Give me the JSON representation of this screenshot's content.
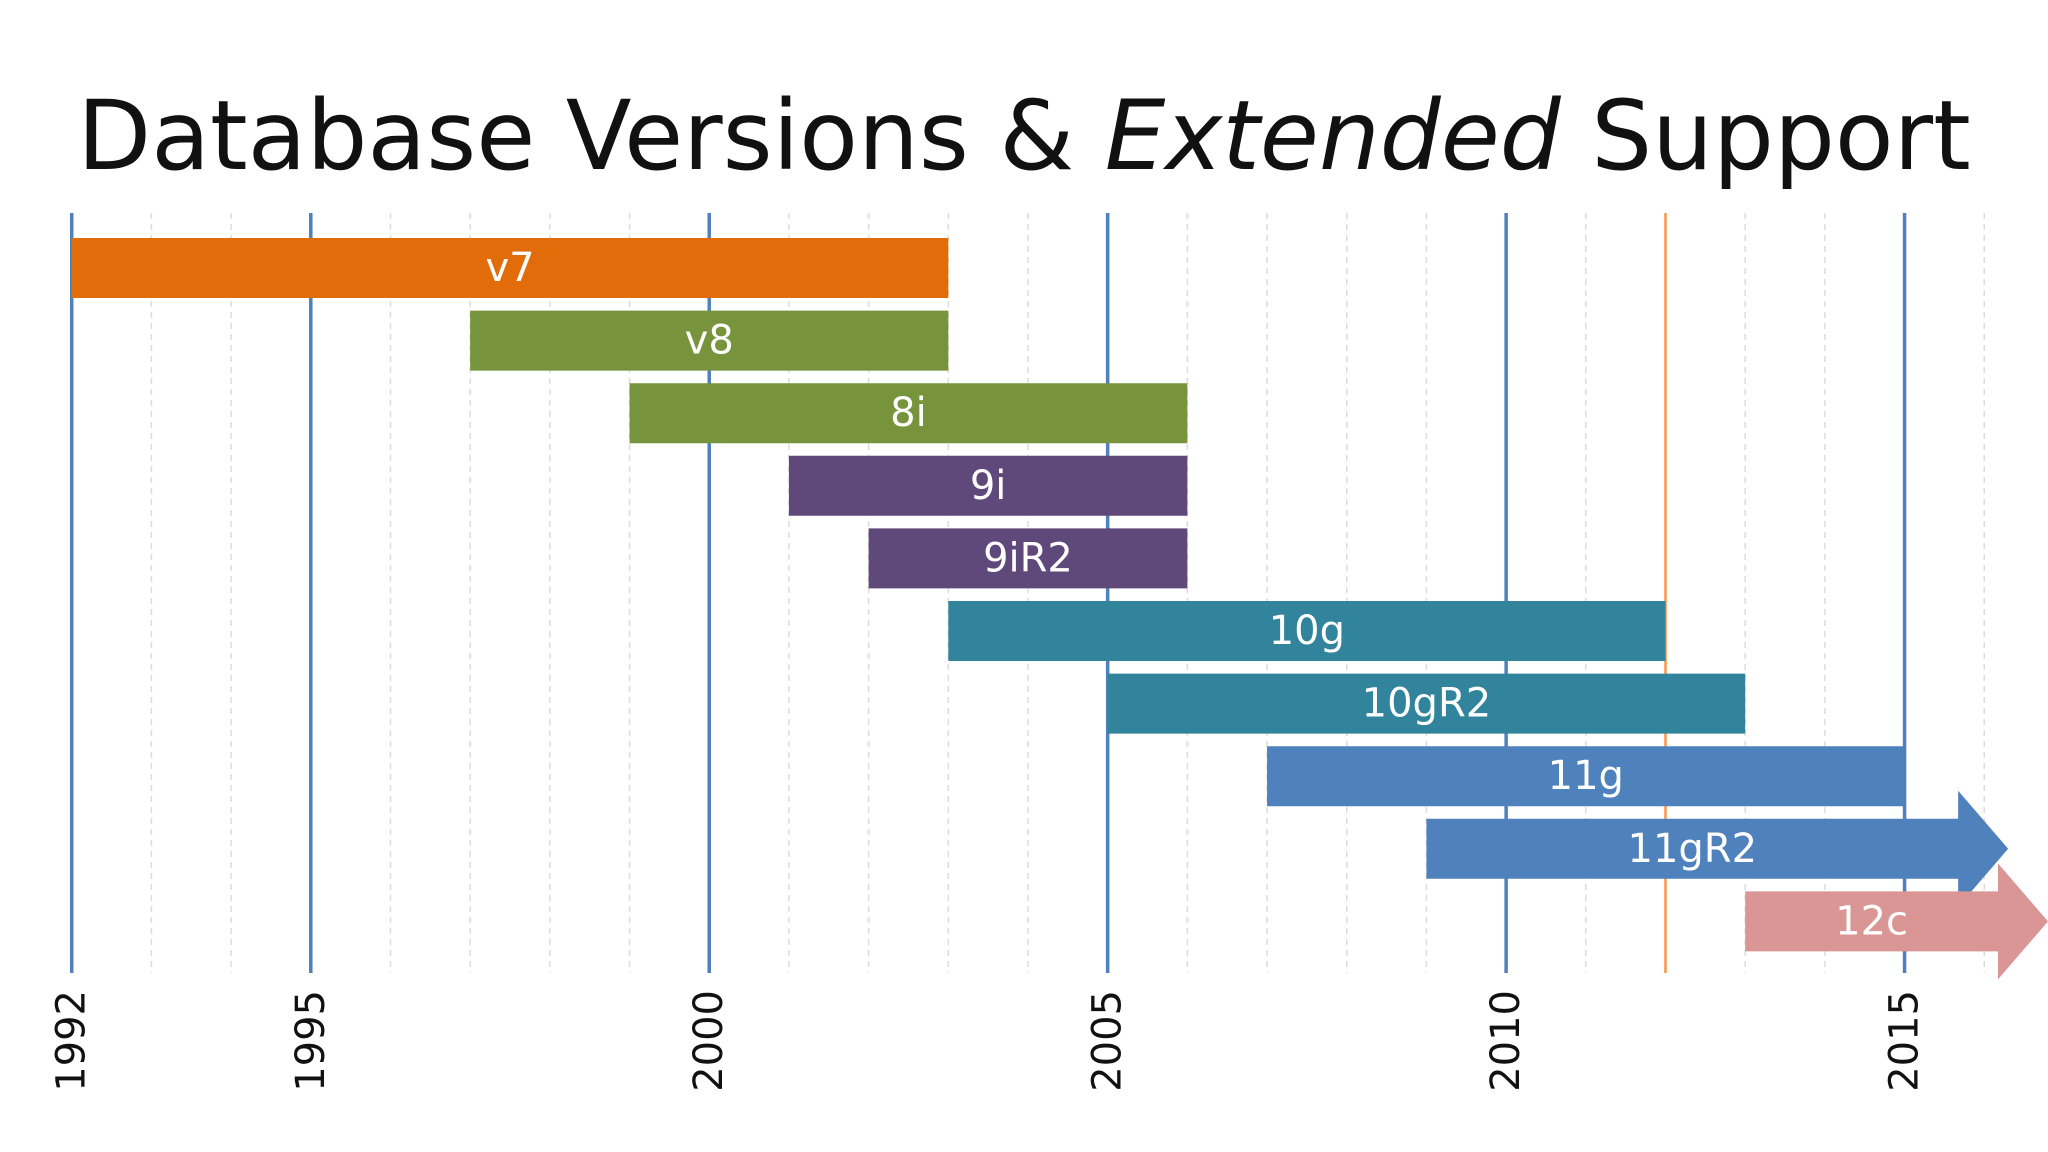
{
  "chart_data": {
    "type": "timeline",
    "title": [
      {
        "text": "Database Versions &",
        "italic": false
      },
      {
        "text": "Extended",
        "italic": true
      },
      {
        "text": "Support",
        "italic": false
      }
    ],
    "bars": [
      {
        "name": "v7",
        "start": 1992,
        "end": 2003,
        "color": "#e36c0a",
        "arrow": false
      },
      {
        "name": "v8",
        "start": 1997,
        "end": 2003,
        "color": "#77933c",
        "arrow": false
      },
      {
        "name": "8i",
        "start": 1999,
        "end": 2006,
        "color": "#77933c",
        "arrow": false
      },
      {
        "name": "9i",
        "start": 2001,
        "end": 2006,
        "color": "#5f497a",
        "arrow": false
      },
      {
        "name": "9iR2",
        "start": 2002,
        "end": 2006,
        "color": "#5f497a",
        "arrow": false
      },
      {
        "name": "10g",
        "start": 2003,
        "end": 2012,
        "color": "#31849b",
        "arrow": false
      },
      {
        "name": "10gR2",
        "start": 2005,
        "end": 2013,
        "color": "#31849b",
        "arrow": false
      },
      {
        "name": "11g",
        "start": 2007,
        "end": 2015,
        "color": "#4f81bd",
        "arrow": false
      },
      {
        "name": "11gR2",
        "start": 2009,
        "end": 2016.3,
        "color": "#4f81bd",
        "arrow": true
      },
      {
        "name": "12c",
        "start": 2013,
        "end": 2016.8,
        "color": "#d99694",
        "arrow": true
      }
    ],
    "xlim": [
      1991.1,
      2016.8
    ],
    "xticks": [
      1992,
      1995,
      2000,
      2005,
      2010,
      2015
    ],
    "minor_xticks": [
      1992,
      1993,
      1994,
      1995,
      1996,
      1997,
      1998,
      1999,
      2000,
      2001,
      2002,
      2003,
      2004,
      2005,
      2006,
      2007,
      2008,
      2009,
      2010,
      2011,
      2012,
      2013,
      2014,
      2015,
      2016
    ],
    "major_grid_color": "#4f81bd",
    "marker": {
      "value": 2012,
      "color": "#f79646"
    },
    "grid": true
  }
}
